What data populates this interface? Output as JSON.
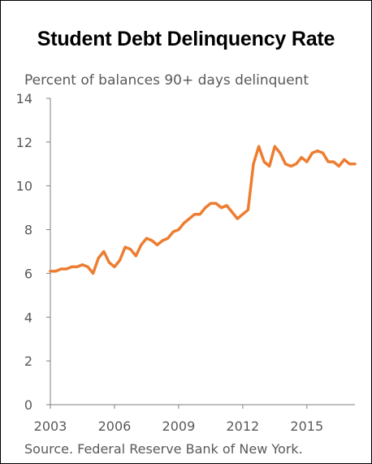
{
  "chart_data": {
    "type": "line",
    "title": "Student Debt Delinquency Rate",
    "subtitle": "Percent of balances 90+ days delinquent",
    "source": "Source. Federal Reserve Bank of New York.",
    "xlabel": "",
    "ylabel": "",
    "ylim": [
      0,
      14
    ],
    "xlim": [
      2003,
      2017.25
    ],
    "yticks": [
      0,
      2,
      4,
      6,
      8,
      10,
      12,
      14
    ],
    "xticks": [
      2003,
      2006,
      2009,
      2012,
      2015
    ],
    "grid": false,
    "legend": "none",
    "line_color": "#ED7D31",
    "series": [
      {
        "x": [
          2003.0,
          2003.25,
          2003.5,
          2003.75,
          2004.0,
          2004.25,
          2004.5,
          2004.75,
          2005.0,
          2005.25,
          2005.5,
          2005.75,
          2006.0,
          2006.25,
          2006.5,
          2006.75,
          2007.0,
          2007.25,
          2007.5,
          2007.75,
          2008.0,
          2008.25,
          2008.5,
          2008.75,
          2009.0,
          2009.25,
          2009.5,
          2009.75,
          2010.0,
          2010.25,
          2010.5,
          2010.75,
          2011.0,
          2011.25,
          2011.5,
          2011.75,
          2012.0,
          2012.25,
          2012.5,
          2012.75,
          2013.0,
          2013.25,
          2013.5,
          2013.75,
          2014.0,
          2014.25,
          2014.5,
          2014.75,
          2015.0,
          2015.25,
          2015.5,
          2015.75,
          2016.0,
          2016.25,
          2016.5,
          2016.75,
          2017.0,
          2017.25
        ],
        "values": [
          6.1,
          6.1,
          6.2,
          6.2,
          6.3,
          6.3,
          6.4,
          6.3,
          6.0,
          6.7,
          7.0,
          6.5,
          6.3,
          6.6,
          7.2,
          7.1,
          6.8,
          7.3,
          7.6,
          7.5,
          7.3,
          7.5,
          7.6,
          7.9,
          8.0,
          8.3,
          8.5,
          8.7,
          8.7,
          9.0,
          9.2,
          9.2,
          9.0,
          9.1,
          8.8,
          8.5,
          8.7,
          8.9,
          11.0,
          11.8,
          11.1,
          10.9,
          11.8,
          11.5,
          11.0,
          10.9,
          11.0,
          11.3,
          11.1,
          11.5,
          11.6,
          11.5,
          11.1,
          11.1,
          10.9,
          11.2,
          11.0,
          11.0
        ]
      }
    ]
  }
}
